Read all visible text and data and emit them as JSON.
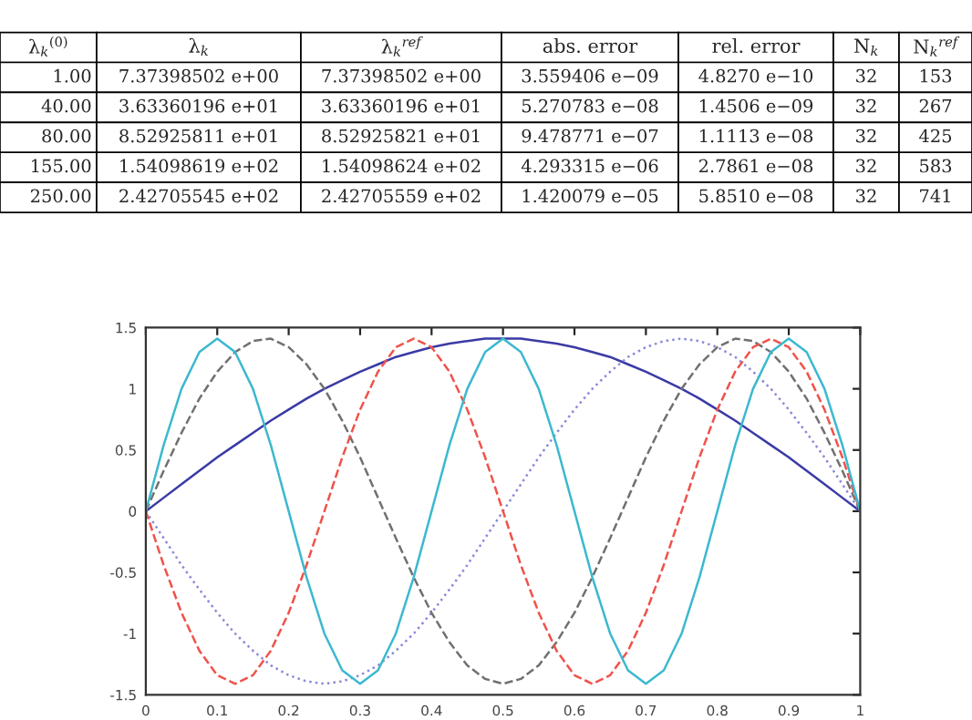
{
  "chart_data": [
    {
      "type": "other",
      "categories": [
        "λ$_{k}$$^{(0)}$",
        "λ$_{k}$",
        "λ$_{k}$$^{ref}$",
        "abs. error",
        "rel. error",
        "N$_{k}$",
        "N$_{k}$$^{ref}$"
      ],
      "cell_labels": [
        [
          "1.00",
          "7.37398502 e+00",
          "7.37398502 e+00",
          "3.559406 e−09",
          "4.8270 e−10",
          "32",
          "153"
        ],
        [
          "40.00",
          "3.63360196 e+01",
          "3.63360196 e+01",
          "5.270783 e−08",
          "1.4506 e−09",
          "32",
          "267"
        ],
        [
          "80.00",
          "8.52925811 e+01",
          "8.52925821 e+01",
          "9.478771 e−07",
          "1.1113 e−08",
          "32",
          "425"
        ],
        [
          "155.00",
          "1.54098619 e+02",
          "1.54098624 e+02",
          "4.293315 e−06",
          "2.7861 e−08",
          "32",
          "583"
        ],
        [
          "250.00",
          "2.42705545 e+02",
          "2.42705559 e+02",
          "1.420079 e−05",
          "5.8510 e−08",
          "32",
          "741"
        ]
      ]
    },
    {
      "type": "line",
      "x": [
        0,
        0.025,
        0.05,
        0.075,
        0.1,
        0.125,
        0.15,
        0.175,
        0.2,
        0.225,
        0.25,
        0.275,
        0.3,
        0.325,
        0.35,
        0.375,
        0.4,
        0.425,
        0.45,
        0.475,
        0.5,
        0.525,
        0.55,
        0.575,
        0.6,
        0.625,
        0.65,
        0.675,
        0.7,
        0.725,
        0.75,
        0.775,
        0.8,
        0.825,
        0.85,
        0.875,
        0.9,
        0.925,
        0.95,
        0.975,
        1
      ],
      "series": [
        {
          "color": "#3a3aa6",
          "line_style": "solid",
          "values": [
            0,
            0.11,
            0.22,
            0.33,
            0.44,
            0.54,
            0.64,
            0.74,
            0.83,
            0.92,
            1.0,
            1.07,
            1.14,
            1.2,
            1.26,
            1.3,
            1.34,
            1.37,
            1.39,
            1.41,
            1.41,
            1.41,
            1.39,
            1.37,
            1.34,
            1.3,
            1.26,
            1.2,
            1.14,
            1.07,
            1.0,
            0.92,
            0.83,
            0.74,
            0.64,
            0.54,
            0.44,
            0.33,
            0.22,
            0.11,
            0
          ]
        },
        {
          "color": "#8a8ad8",
          "line_style": "dotted",
          "values": [
            0,
            -0.22,
            -0.44,
            -0.64,
            -0.83,
            -1.0,
            -1.14,
            -1.26,
            -1.34,
            -1.39,
            -1.41,
            -1.39,
            -1.34,
            -1.26,
            -1.14,
            -1.0,
            -0.83,
            -0.64,
            -0.44,
            -0.22,
            0,
            0.22,
            0.44,
            0.64,
            0.83,
            1.0,
            1.14,
            1.26,
            1.34,
            1.39,
            1.41,
            1.39,
            1.34,
            1.26,
            1.14,
            1.0,
            0.83,
            0.64,
            0.44,
            0.22,
            0
          ]
        },
        {
          "color": "#707070",
          "line_style": "dashed",
          "values": [
            0,
            0.33,
            0.64,
            0.92,
            1.14,
            1.3,
            1.39,
            1.41,
            1.34,
            1.2,
            1.0,
            0.74,
            0.44,
            0.11,
            -0.22,
            -0.54,
            -0.83,
            -1.07,
            -1.26,
            -1.37,
            -1.41,
            -1.37,
            -1.26,
            -1.07,
            -0.83,
            -0.54,
            -0.22,
            0.11,
            0.44,
            0.74,
            1.0,
            1.2,
            1.34,
            1.41,
            1.39,
            1.3,
            1.14,
            0.92,
            0.64,
            0.33,
            0
          ]
        },
        {
          "color": "#f0524a",
          "line_style": "dashed",
          "values": [
            0,
            -0.44,
            -0.83,
            -1.14,
            -1.34,
            -1.41,
            -1.34,
            -1.14,
            -0.83,
            -0.44,
            0,
            0.44,
            0.83,
            1.14,
            1.34,
            1.41,
            1.34,
            1.14,
            0.83,
            0.44,
            0,
            -0.44,
            -0.83,
            -1.14,
            -1.34,
            -1.41,
            -1.34,
            -1.14,
            -0.83,
            -0.44,
            0,
            0.44,
            0.83,
            1.14,
            1.34,
            1.41,
            1.34,
            1.14,
            0.83,
            0.44,
            0
          ]
        },
        {
          "color": "#3cb8d0",
          "line_style": "solid",
          "values": [
            0,
            0.54,
            1.0,
            1.3,
            1.41,
            1.3,
            1.0,
            0.54,
            0,
            -0.54,
            -1.0,
            -1.3,
            -1.41,
            -1.3,
            -1.0,
            -0.54,
            0,
            0.54,
            1.0,
            1.3,
            1.41,
            1.3,
            1.0,
            0.54,
            0,
            -0.54,
            -1.0,
            -1.3,
            -1.41,
            -1.3,
            -1.0,
            -0.54,
            0,
            0.54,
            1.0,
            1.3,
            1.41,
            1.3,
            1.0,
            0.54,
            0
          ]
        }
      ],
      "xlim": [
        0,
        1
      ],
      "ylim": [
        -1.5,
        1.5
      ],
      "xticks": [
        0,
        0.1,
        0.2,
        0.3,
        0.4,
        0.5,
        0.6,
        0.7,
        0.8,
        0.9,
        1
      ],
      "yticks": [
        -1.5,
        -1,
        -0.5,
        0,
        0.5,
        1,
        1.5
      ],
      "grid": false
    }
  ]
}
